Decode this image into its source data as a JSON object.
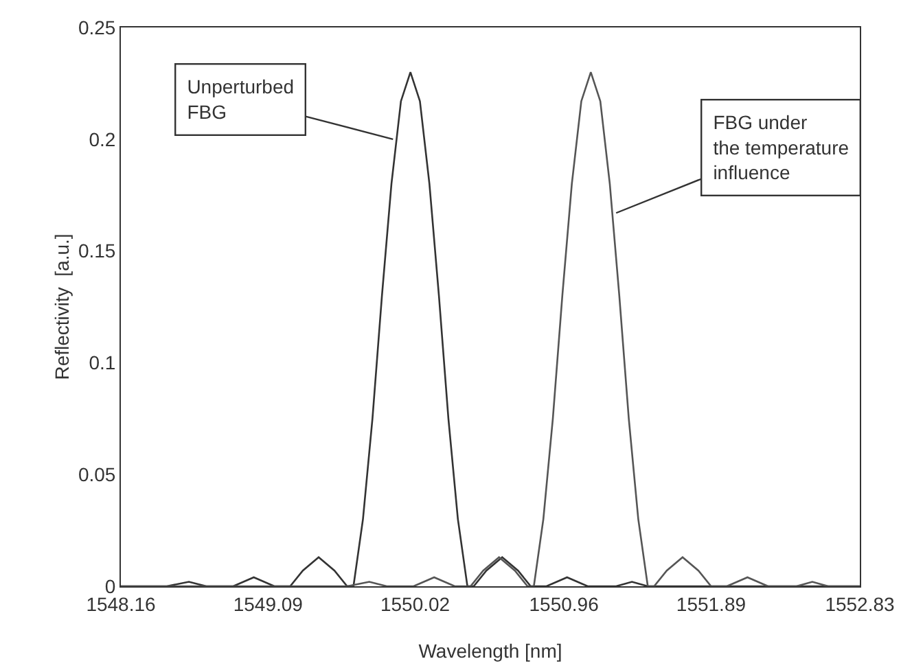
{
  "chart_data": {
    "type": "line",
    "xlabel": "Wavelength [nm]",
    "ylabel": "Reflectivity  [a.u.]",
    "xlim": [
      1548.16,
      1552.83
    ],
    "xticks": [
      1548.16,
      1549.09,
      1550.02,
      1550.96,
      1551.89,
      1552.83
    ],
    "ylim": [
      0,
      0.25
    ],
    "yticks": [
      0,
      0.05,
      0.1,
      0.15,
      0.2,
      0.25
    ],
    "grid": false,
    "marker": "none",
    "line_style": "solid",
    "series": [
      {
        "color": "#333333",
        "x": [
          1548.16,
          1548.45,
          1548.59,
          1548.7,
          1548.87,
          1549.0,
          1549.13,
          1549.23,
          1549.31,
          1549.41,
          1549.51,
          1549.59,
          1549.63,
          1549.69,
          1549.75,
          1549.81,
          1549.87,
          1549.93,
          1549.99,
          1550.05,
          1550.11,
          1550.17,
          1550.23,
          1550.29,
          1550.35,
          1550.39,
          1550.47,
          1550.57,
          1550.67,
          1550.75,
          1550.85,
          1550.98,
          1551.11,
          1551.29,
          1551.39,
          1551.49,
          1552.83
        ],
        "values": [
          0,
          0,
          0.002,
          0,
          0,
          0.004,
          0,
          0,
          0.007,
          0.013,
          0.007,
          0,
          0,
          0.03,
          0.075,
          0.13,
          0.18,
          0.217,
          0.23,
          0.217,
          0.18,
          0.13,
          0.075,
          0.03,
          0,
          0,
          0.007,
          0.013,
          0.007,
          0,
          0,
          0.004,
          0,
          0,
          0.002,
          0,
          0
        ]
      },
      {
        "color": "#555555",
        "x": [
          1548.16,
          1549.59,
          1549.73,
          1549.84,
          1550.01,
          1550.14,
          1550.27,
          1550.37,
          1550.45,
          1550.55,
          1550.65,
          1550.73,
          1550.77,
          1550.83,
          1550.89,
          1550.95,
          1551.01,
          1551.07,
          1551.13,
          1551.19,
          1551.25,
          1551.31,
          1551.37,
          1551.43,
          1551.49,
          1551.53,
          1551.61,
          1551.71,
          1551.81,
          1551.89,
          1551.99,
          1552.12,
          1552.25,
          1552.43,
          1552.53,
          1552.63,
          1552.83
        ],
        "values": [
          0,
          0,
          0.002,
          0,
          0,
          0.004,
          0,
          0,
          0.007,
          0.013,
          0.007,
          0,
          0,
          0.03,
          0.075,
          0.13,
          0.18,
          0.217,
          0.23,
          0.217,
          0.18,
          0.13,
          0.075,
          0.03,
          0,
          0,
          0.007,
          0.013,
          0.007,
          0,
          0,
          0.004,
          0,
          0,
          0.002,
          0,
          0
        ]
      }
    ],
    "annotations": [
      {
        "text": "Unperturbed\nFBG",
        "x": 1549.88,
        "y": 0.2
      },
      {
        "text": "FBG under\nthe temperature\ninfluence",
        "x": 1551.29,
        "y": 0.167
      }
    ]
  }
}
